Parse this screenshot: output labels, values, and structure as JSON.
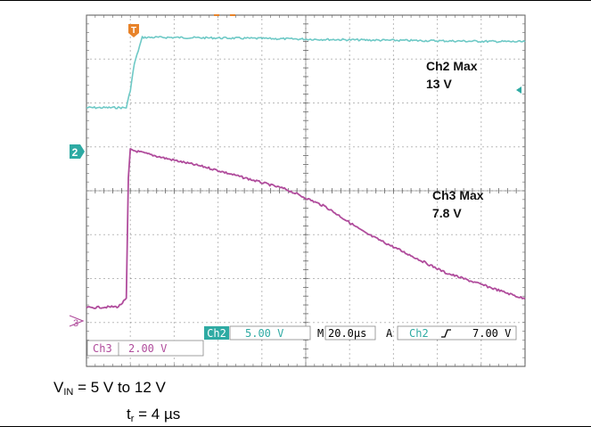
{
  "scope": {
    "trigger_marker": "T",
    "ch2": {
      "marker": "2",
      "color": "#6ec9c6",
      "annotation_line1": "Ch2 Max",
      "annotation_line2": "13 V"
    },
    "ch3": {
      "marker": "3",
      "color": "#b04c9c",
      "annotation_line1": "Ch3 Max",
      "annotation_line2": "7.8 V"
    },
    "readout": {
      "ch2_label": "Ch2",
      "ch2_scale": "5.00 V",
      "time_label": "M",
      "time_scale": "20.0µs",
      "trigger_label": "A",
      "trigger_source": "Ch2",
      "trigger_slope_icon": "rising-edge-icon",
      "trigger_level": "7.00 V",
      "ch3_label": "Ch3",
      "ch3_scale": "2.00 V"
    }
  },
  "caption": {
    "line1_main": "V",
    "line1_sub": "IN",
    "line1_rest": " = 5 V to 12 V",
    "line2_main": "t",
    "line2_sub": "r",
    "line2_rest": " = 4 µs"
  },
  "chart_data": {
    "type": "line",
    "xlabel": "",
    "ylabel": "",
    "x_units": "µs",
    "xlim": [
      -10,
      100
    ],
    "series": [
      {
        "name": "Ch2",
        "x": [
          -10,
          0,
          1,
          2,
          4,
          10,
          30,
          60,
          100
        ],
        "y": [
          5,
          5,
          7,
          10,
          13,
          13,
          12.9,
          12.7,
          12.5
        ]
      },
      {
        "name": "Ch3",
        "x": [
          -10,
          -2,
          0,
          0.5,
          1,
          10,
          20,
          40,
          50,
          60,
          80,
          100
        ],
        "y": [
          0.6,
          0.65,
          1.0,
          6.5,
          7.8,
          7.4,
          7.0,
          6.0,
          5.2,
          4.0,
          2.2,
          1.0
        ]
      }
    ]
  }
}
